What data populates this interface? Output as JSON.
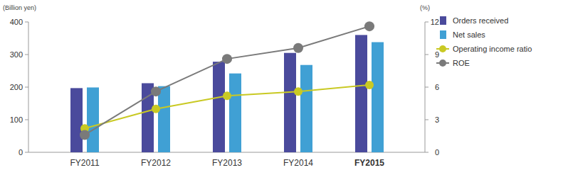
{
  "chart_data": {
    "type": "bar",
    "ylabel": "(Billion yen)",
    "y2label": "(%)",
    "categories": [
      "FY2011",
      "FY2012",
      "FY2013",
      "FY2014",
      "FY2015"
    ],
    "series": [
      {
        "name": "Orders received",
        "type": "bar",
        "color": "#4a4a9c",
        "axis": "y",
        "values": [
          197,
          212,
          278,
          305,
          360
        ]
      },
      {
        "name": "Net sales",
        "type": "bar",
        "color": "#40a0d4",
        "axis": "y",
        "values": [
          199,
          203,
          242,
          268,
          338
        ]
      },
      {
        "name": "Operating income ratio",
        "type": "line",
        "color": "#c9c923",
        "marker": "circle",
        "axis": "y2",
        "values": [
          2.2,
          4.0,
          5.2,
          5.6,
          6.2
        ]
      },
      {
        "name": "ROE",
        "type": "line",
        "color": "#7a7a7a",
        "marker": "circle",
        "axis": "y2",
        "values": [
          1.6,
          5.6,
          8.6,
          9.6,
          11.6
        ]
      }
    ],
    "ylim": [
      0,
      400
    ],
    "yticks": [
      0,
      100,
      200,
      300,
      400
    ],
    "y2lim": [
      0,
      12
    ],
    "y2ticks": [
      0,
      3,
      6,
      9,
      12
    ],
    "grid": false,
    "legend": "right"
  }
}
